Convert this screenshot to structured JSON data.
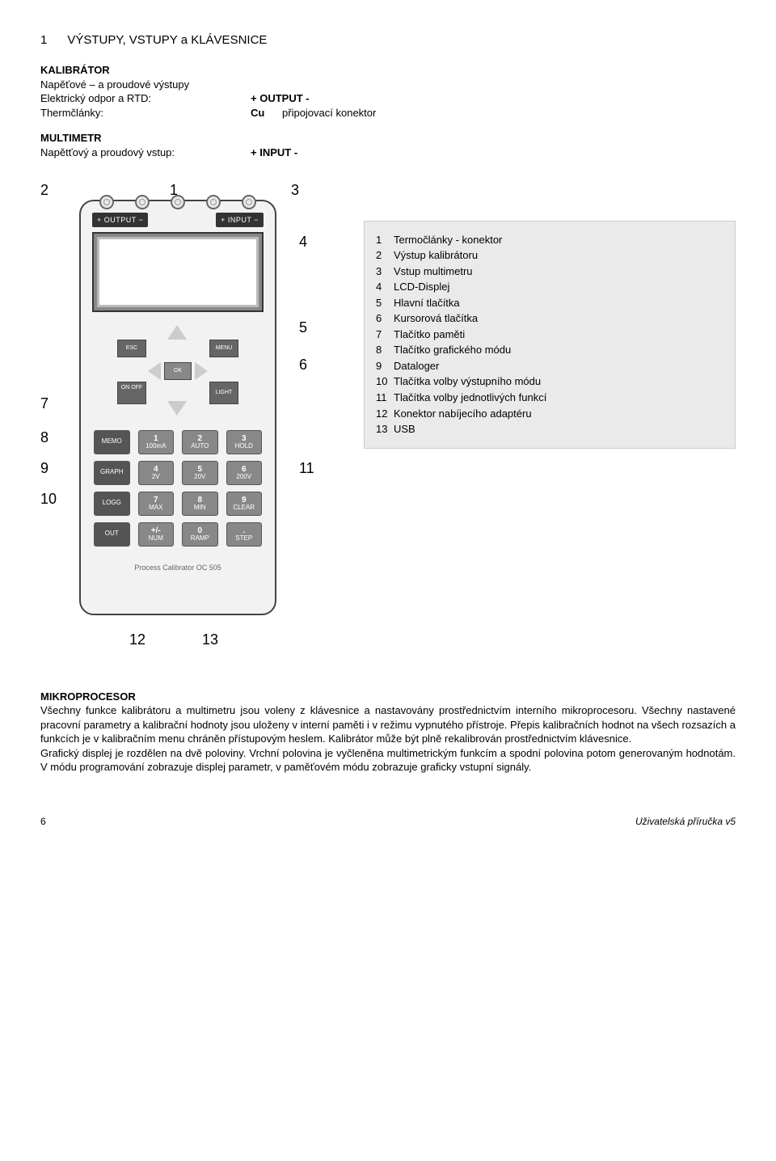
{
  "page": {
    "heading_num": "1",
    "heading_text": "VÝSTUPY, VSTUPY a  KLÁVESNICE"
  },
  "kalibrator": {
    "title": "KALIBRÁTOR",
    "line1_l": "Napěťové – a proudové výstupy",
    "line2_l": "Elektrický odpor a RTD:",
    "line2_r": "+ OUTPUT -",
    "line3_l": "Thermčlánky:",
    "line3_r_a": "Cu",
    "line3_r_b": "připojovací konektor"
  },
  "multimetr": {
    "title": "MULTIMETR",
    "line1_l": "Napětťový a proudový vstup:",
    "line1_r": "+ INPUT -"
  },
  "device": {
    "out_label": "+ OUTPUT −",
    "in_label": "+ INPUT −",
    "esc": "ESC",
    "menu": "MENU",
    "ok": "OK",
    "onoff": "ON\nOFF",
    "light": "LIGHT",
    "bottom": "Process Calibrator OC 505",
    "keys": [
      {
        "l": "MEMO",
        "b": ""
      },
      {
        "l": "100mA",
        "b": "1"
      },
      {
        "l": "AUTO",
        "b": "2"
      },
      {
        "l": "HOLD",
        "b": "3"
      },
      {
        "l": "GRAPH",
        "b": ""
      },
      {
        "l": "2V",
        "b": "4"
      },
      {
        "l": "20V",
        "b": "5"
      },
      {
        "l": "200V",
        "b": "6"
      },
      {
        "l": "LOGG",
        "b": ""
      },
      {
        "l": "MAX",
        "b": "7"
      },
      {
        "l": "MIN",
        "b": "8"
      },
      {
        "l": "CLEAR",
        "b": "9"
      },
      {
        "l": "OUT",
        "b": ""
      },
      {
        "l": "NUM",
        "b": "+/-"
      },
      {
        "l": "RAMP",
        "b": "0"
      },
      {
        "l": "STEP",
        "b": "."
      }
    ]
  },
  "callouts": [
    "1",
    "2",
    "3",
    "4",
    "5",
    "6",
    "7",
    "8",
    "9",
    "10",
    "11",
    "12",
    "13"
  ],
  "legend": [
    "Termočlánky - konektor",
    "Výstup kalibrátoru",
    "Vstup multimetru",
    "LCD-Displej",
    "Hlavní tlačítka",
    "Kursorová tlačítka",
    "Tlačítko paměti",
    "Tlačítko grafického módu",
    "Dataloger",
    "Tlačítka volby výstupního módu",
    "Tlačítka volby jednotlivých funkcí",
    "Konektor nabíjecího adaptéru",
    "USB"
  ],
  "microprocessor": {
    "title": "MIKROPROCESOR",
    "para1": "Všechny funkce kalibrátoru a multimetru jsou voleny z klávesnice a nastavovány prostřednictvím interního mikroprocesoru. Všechny nastavené pracovní parametry a kalibrační hodnoty jsou uloženy v interní paměti i v režimu vypnutého přístroje. Přepis kalibračních hodnot na všech rozsazích a funkcích je v kalibračním menu chráněn přístupovým heslem. Kalibrátor může být plně  rekalibrován prostřednictvím klávesnice.",
    "para2": "Grafický displej je rozdělen na dvě poloviny. Vrchní polovina je vyčleněna multimetrickým funkcím a spodní polovina potom generovaným hodnotám. V módu programování zobrazuje displej parametr, v paměťovém módu zobrazuje graficky vstupní signály."
  },
  "footer": {
    "page": "6",
    "doc": "Uživatelská příručka v5"
  }
}
